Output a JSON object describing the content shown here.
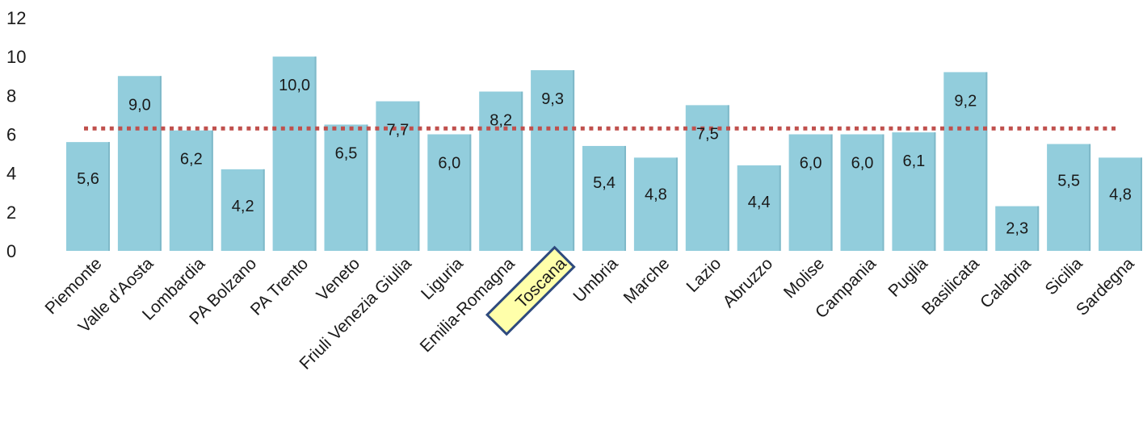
{
  "chart_data": {
    "type": "bar",
    "categories": [
      "Piemonte",
      "Valle d’Aosta",
      "Lombardia",
      "PA Bolzano",
      "PA Trento",
      "Veneto",
      "Friuli Venezia Giulia",
      "Liguria",
      "Emilia-Romagna",
      "Toscana",
      "Umbria",
      "Marche",
      "Lazio",
      "Abruzzo",
      "Molise",
      "Campania",
      "Puglia",
      "Basilicata",
      "Calabria",
      "Sicilia",
      "Sardegna"
    ],
    "values": [
      5.6,
      9.0,
      6.2,
      4.2,
      10.0,
      6.5,
      7.7,
      6.0,
      8.2,
      9.3,
      5.4,
      4.8,
      7.5,
      4.4,
      6.0,
      6.0,
      6.1,
      9.2,
      2.3,
      5.5,
      4.8
    ],
    "value_labels": [
      "5,6",
      "9,0",
      "6,2",
      "4,2",
      "10,0",
      "6,5",
      "7,7",
      "6,0",
      "8,2",
      "9,3",
      "5,4",
      "4,8",
      "7,5",
      "4,4",
      "6,0",
      "6,0",
      "6,1",
      "9,2",
      "2,3",
      "5,5",
      "4,8"
    ],
    "yticks": [
      "0",
      "2",
      "4",
      "6",
      "8",
      "10",
      "12"
    ],
    "ylim": [
      0,
      12
    ],
    "reference_line": {
      "value": 6.3,
      "style": "dotted",
      "color": "#c0504d"
    },
    "highlight": {
      "category": "Toscana",
      "fill": "#ffffaa",
      "border": "#2e4a7e"
    },
    "bar_color": "#92cddc",
    "grid": false,
    "title": "",
    "xlabel": "",
    "ylabel": ""
  }
}
